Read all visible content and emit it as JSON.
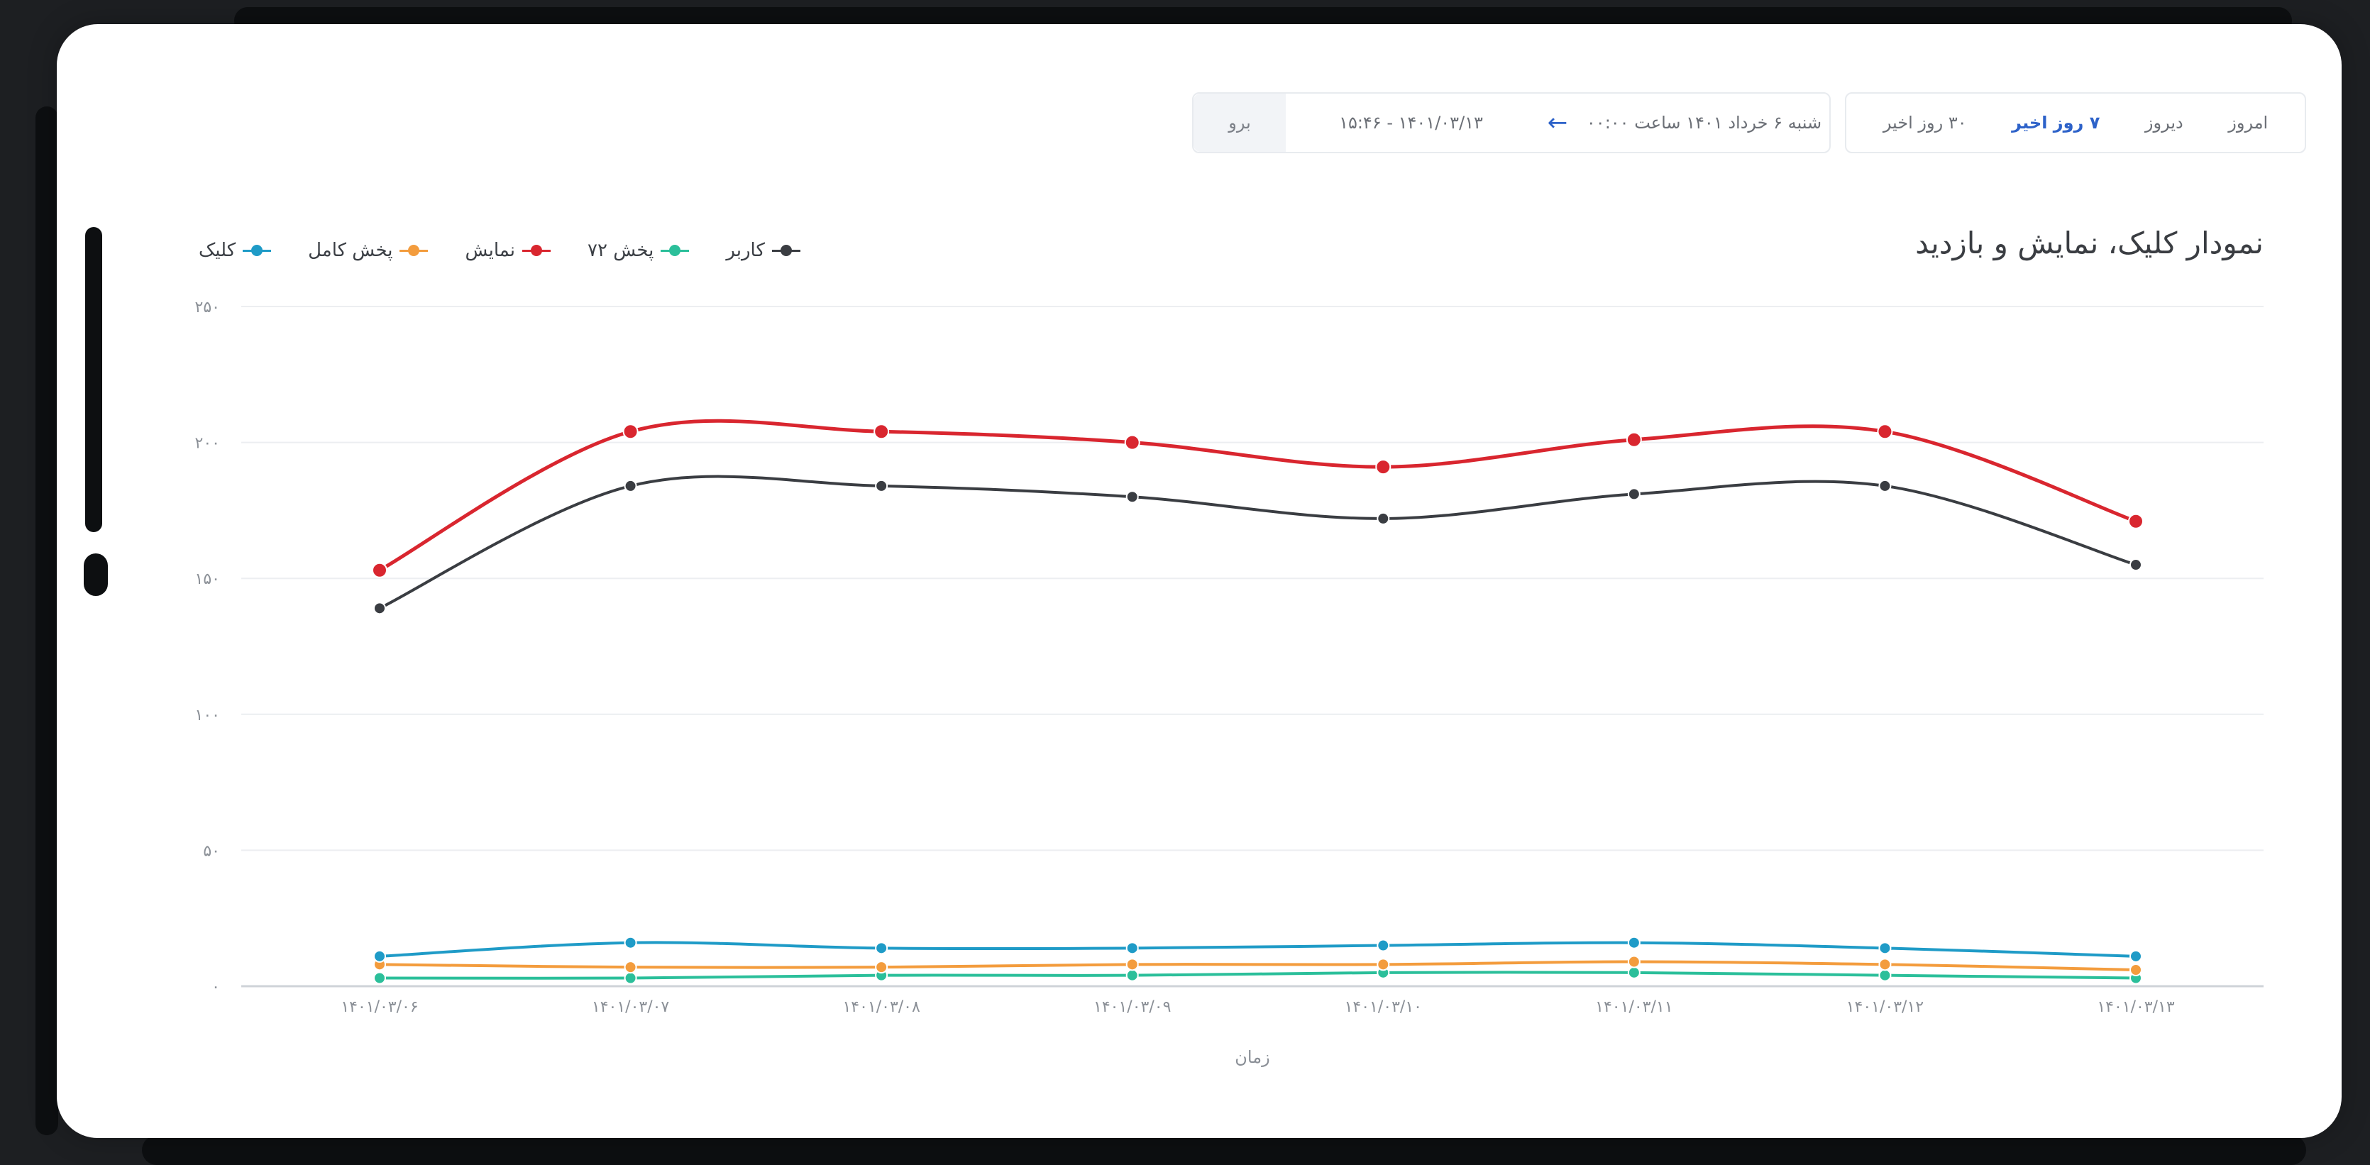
{
  "toolbar": {
    "periods": [
      "امروز",
      "دیروز",
      "۷ روز اخیر",
      "۳۰ روز اخیر"
    ],
    "active_period": "۷ روز اخیر",
    "range_from": "شنبه ۶ خرداد ۱۴۰۱ ساعت ۰۰:۰۰",
    "range_to": "۱۴۰۱/۰۳/۱۳ - ۱۵:۴۶",
    "go_label": "برو"
  },
  "chart_data": {
    "type": "line",
    "title": "نمودار کلیک، نمایش و بازدید",
    "xlabel": "زمان",
    "ylabel": "",
    "ylim": [
      0,
      250
    ],
    "yticks": [
      0,
      50,
      100,
      150,
      200,
      250
    ],
    "ytick_labels": [
      "۰",
      "۵۰",
      "۱۰۰",
      "۱۵۰",
      "۲۰۰",
      "۲۵۰"
    ],
    "grid": true,
    "legend_position": "top-left",
    "categories": [
      "۱۴۰۱/۰۳/۰۶",
      "۱۴۰۱/۰۳/۰۷",
      "۱۴۰۱/۰۳/۰۸",
      "۱۴۰۱/۰۳/۰۹",
      "۱۴۰۱/۰۳/۱۰",
      "۱۴۰۱/۰۳/۱۱",
      "۱۴۰۱/۰۳/۱۲",
      "۱۴۰۱/۰۳/۱۳"
    ],
    "series": [
      {
        "name": "کاربر",
        "color": "#3a3d42",
        "values": [
          139,
          184,
          184,
          180,
          172,
          181,
          184,
          155
        ]
      },
      {
        "name": "پخش ۷۲",
        "color": "#2bbf9a",
        "values": [
          3,
          3,
          4,
          4,
          5,
          5,
          4,
          3
        ]
      },
      {
        "name": "نمایش",
        "color": "#d9262f",
        "values": [
          153,
          204,
          204,
          200,
          191,
          201,
          204,
          171
        ]
      },
      {
        "name": "پخش کامل",
        "color": "#f39c3d",
        "values": [
          8,
          7,
          7,
          8,
          8,
          9,
          8,
          6
        ]
      },
      {
        "name": "کلیک",
        "color": "#1f9bc7",
        "values": [
          11,
          16,
          14,
          14,
          15,
          16,
          14,
          11
        ]
      }
    ]
  }
}
